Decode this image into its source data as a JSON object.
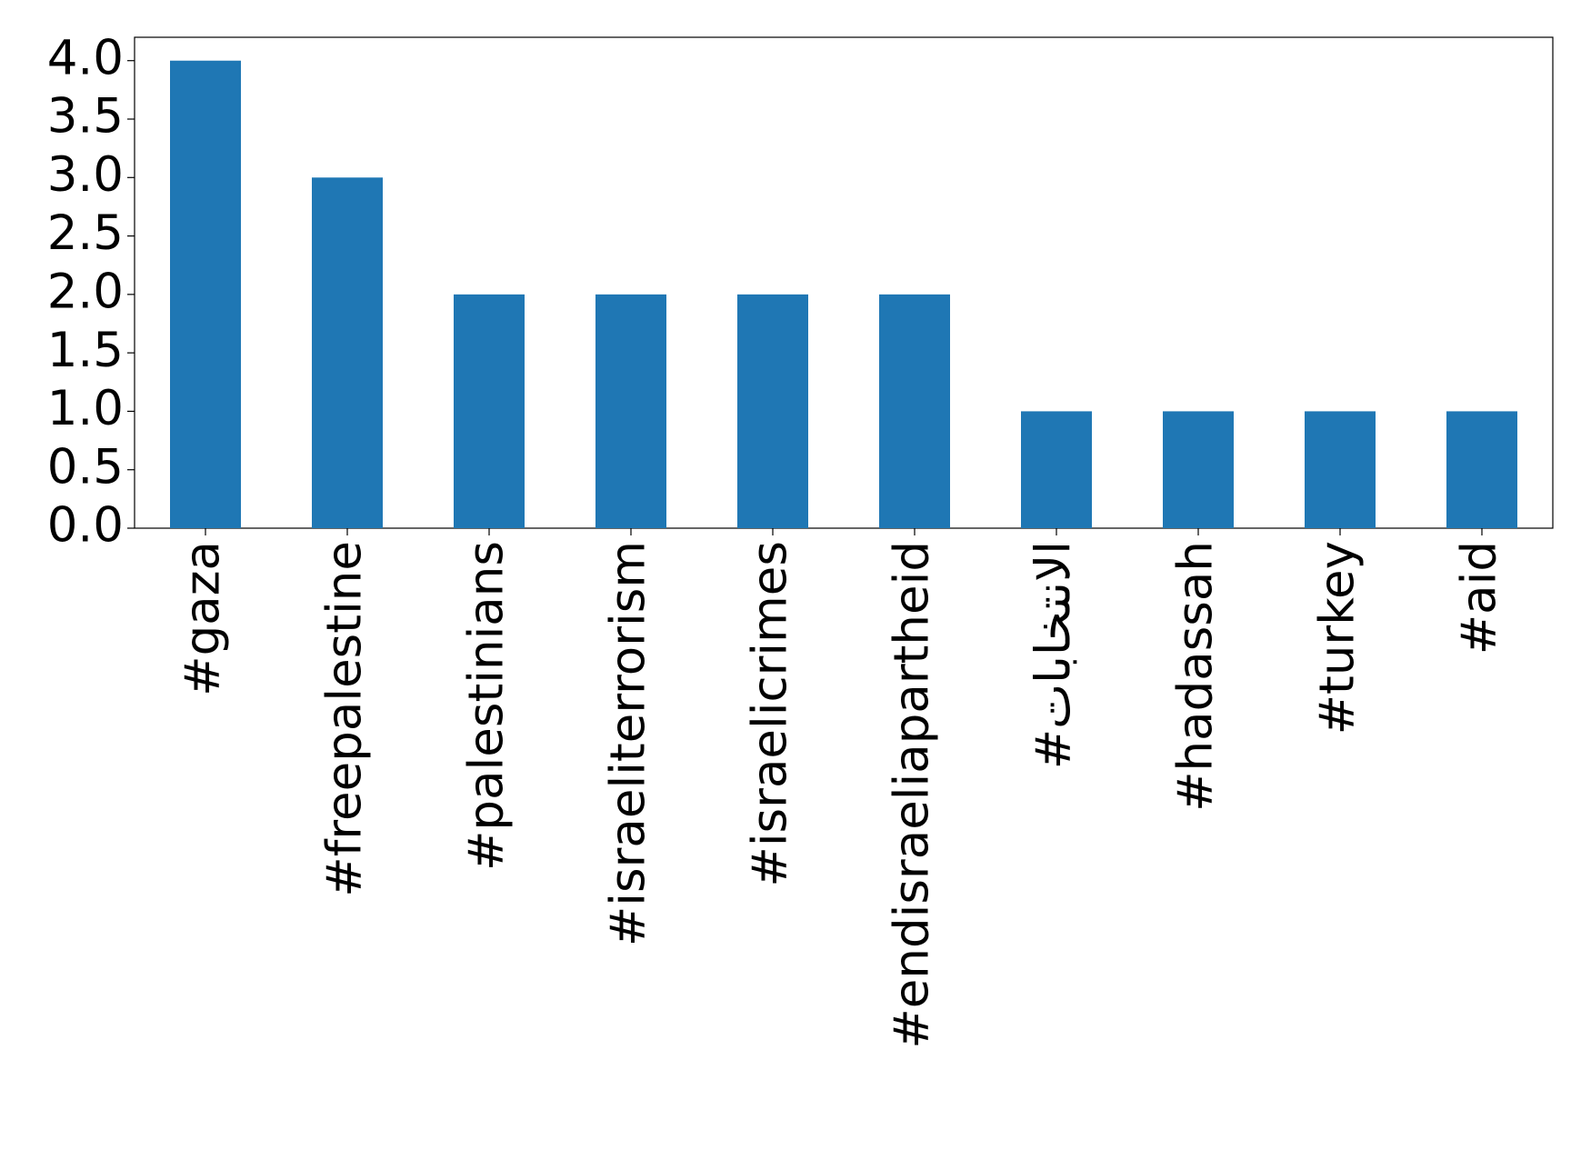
{
  "chart_data": {
    "type": "bar",
    "categories": [
      "#gaza",
      "#freepalestine",
      "#palestinians",
      "#israeliterrorism",
      "#israelicrimes",
      "#endisraeliapartheid",
      "#الانتخابات",
      "#hadassah",
      "#turkey",
      "#aid"
    ],
    "values": [
      4,
      3,
      2,
      2,
      2,
      2,
      1,
      1,
      1,
      1
    ],
    "color": "#1f77b4",
    "ylim": [
      0,
      4.2
    ],
    "yticks": [
      {
        "value": 0,
        "label": "0.0"
      },
      {
        "value": 0.5,
        "label": "0.5"
      },
      {
        "value": 1,
        "label": "1.0"
      },
      {
        "value": 1.5,
        "label": "1.5"
      },
      {
        "value": 2,
        "label": "2.0"
      },
      {
        "value": 2.5,
        "label": "2.5"
      },
      {
        "value": 3,
        "label": "3.0"
      },
      {
        "value": 3.5,
        "label": "3.5"
      },
      {
        "value": 4,
        "label": "4.0"
      }
    ],
    "grid": false
  }
}
